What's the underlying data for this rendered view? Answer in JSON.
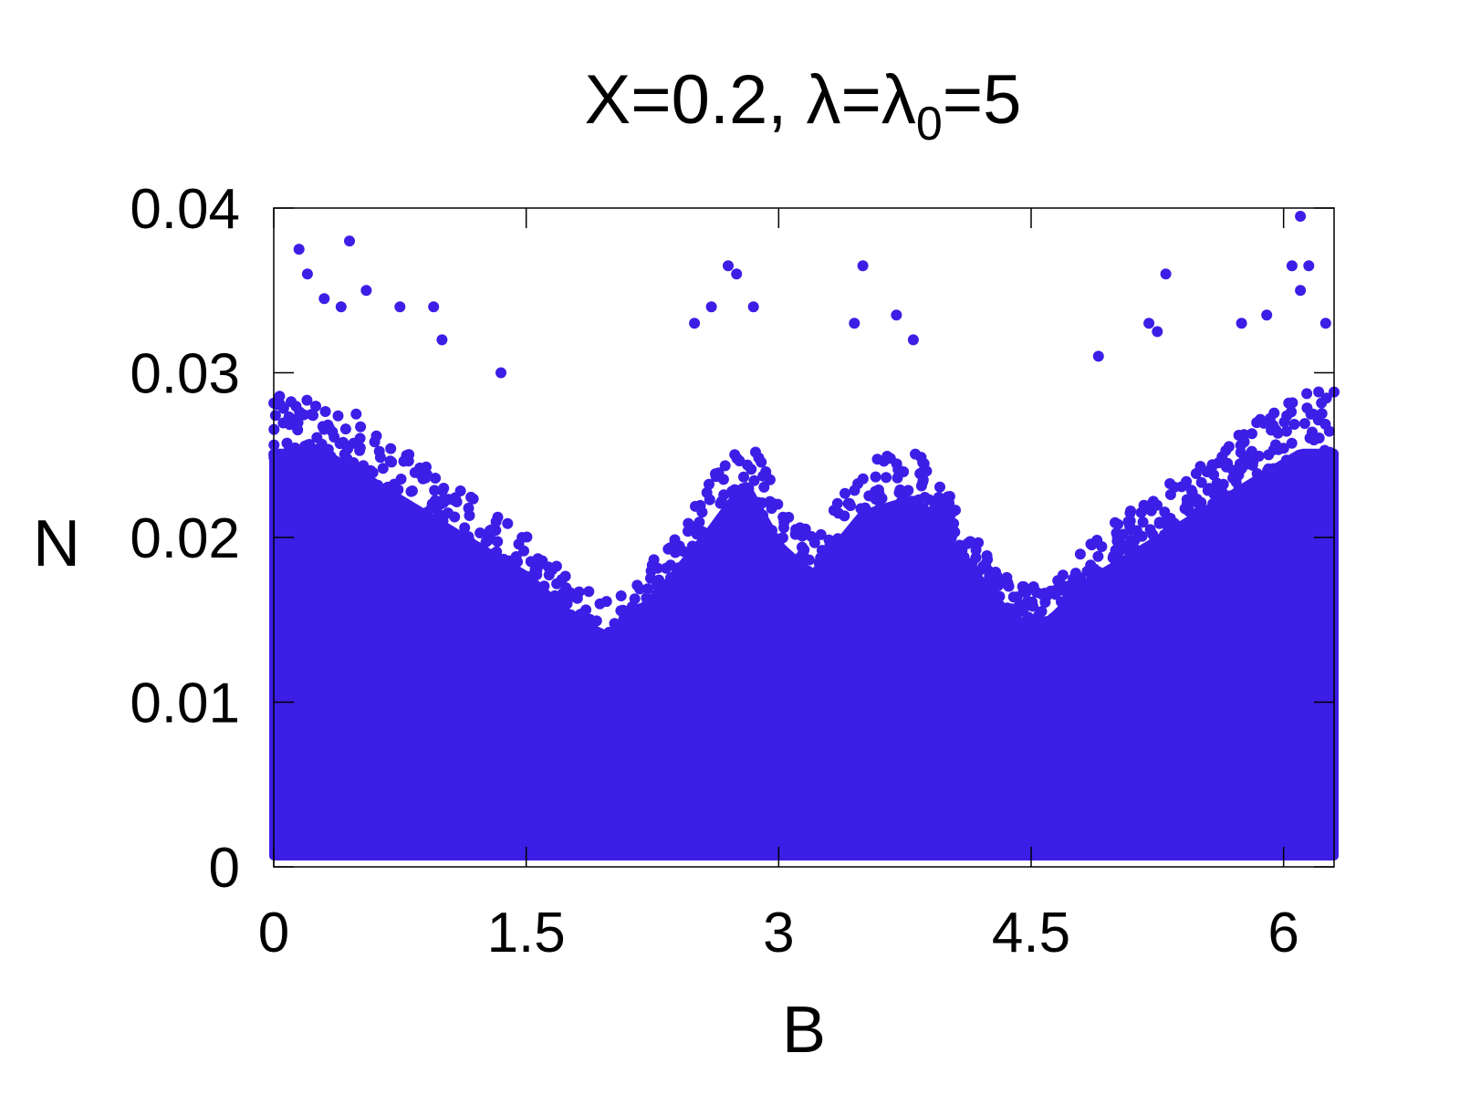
{
  "chart_data": {
    "type": "scatter",
    "title": {
      "main": "X=0.2, λ=λ",
      "subscript": "0",
      "suffix": "=5"
    },
    "xlabel": "B",
    "ylabel": "N",
    "xlim": [
      0,
      6.3
    ],
    "ylim": [
      0,
      0.04
    ],
    "xticks": [
      "0",
      "1.5",
      "3",
      "4.5",
      "6"
    ],
    "xtick_values": [
      0,
      1.5,
      3,
      4.5,
      6
    ],
    "yticks": [
      "0",
      "0.01",
      "0.02",
      "0.03",
      "0.04"
    ],
    "ytick_values": [
      0,
      0.01,
      0.02,
      0.03,
      0.04
    ],
    "grid": false,
    "legend": "none",
    "marker_color": "#3c1ee6",
    "envelope": {
      "description_points_B": [
        0,
        0.3,
        0.6,
        0.9,
        1.2,
        1.5,
        1.8,
        2.0,
        2.3,
        2.6,
        2.8,
        3.0,
        3.2,
        3.5,
        3.8,
        4.1,
        4.4,
        4.6,
        4.9,
        5.2,
        5.5,
        5.8,
        6.1,
        6.3
      ],
      "typical_max_N": [
        0.027,
        0.027,
        0.025,
        0.023,
        0.021,
        0.019,
        0.016,
        0.015,
        0.018,
        0.022,
        0.025,
        0.021,
        0.019,
        0.023,
        0.024,
        0.02,
        0.016,
        0.016,
        0.019,
        0.021,
        0.023,
        0.025,
        0.027,
        0.027
      ]
    },
    "outliers": [
      {
        "x": 0.15,
        "y": 0.0375
      },
      {
        "x": 0.45,
        "y": 0.038
      },
      {
        "x": 0.2,
        "y": 0.036
      },
      {
        "x": 0.55,
        "y": 0.035
      },
      {
        "x": 0.4,
        "y": 0.034
      },
      {
        "x": 0.75,
        "y": 0.034
      },
      {
        "x": 0.95,
        "y": 0.034
      },
      {
        "x": 1.0,
        "y": 0.032
      },
      {
        "x": 1.35,
        "y": 0.03
      },
      {
        "x": 0.3,
        "y": 0.0345
      },
      {
        "x": 2.6,
        "y": 0.034
      },
      {
        "x": 2.7,
        "y": 0.0365
      },
      {
        "x": 2.75,
        "y": 0.036
      },
      {
        "x": 2.85,
        "y": 0.034
      },
      {
        "x": 2.5,
        "y": 0.033
      },
      {
        "x": 3.5,
        "y": 0.0365
      },
      {
        "x": 3.45,
        "y": 0.033
      },
      {
        "x": 3.7,
        "y": 0.0335
      },
      {
        "x": 3.8,
        "y": 0.032
      },
      {
        "x": 4.9,
        "y": 0.031
      },
      {
        "x": 5.2,
        "y": 0.033
      },
      {
        "x": 5.3,
        "y": 0.036
      },
      {
        "x": 5.25,
        "y": 0.0325
      },
      {
        "x": 5.75,
        "y": 0.033
      },
      {
        "x": 5.9,
        "y": 0.0335
      },
      {
        "x": 6.1,
        "y": 0.0395
      },
      {
        "x": 6.05,
        "y": 0.0365
      },
      {
        "x": 6.15,
        "y": 0.0365
      },
      {
        "x": 6.1,
        "y": 0.035
      },
      {
        "x": 6.25,
        "y": 0.033
      }
    ]
  }
}
